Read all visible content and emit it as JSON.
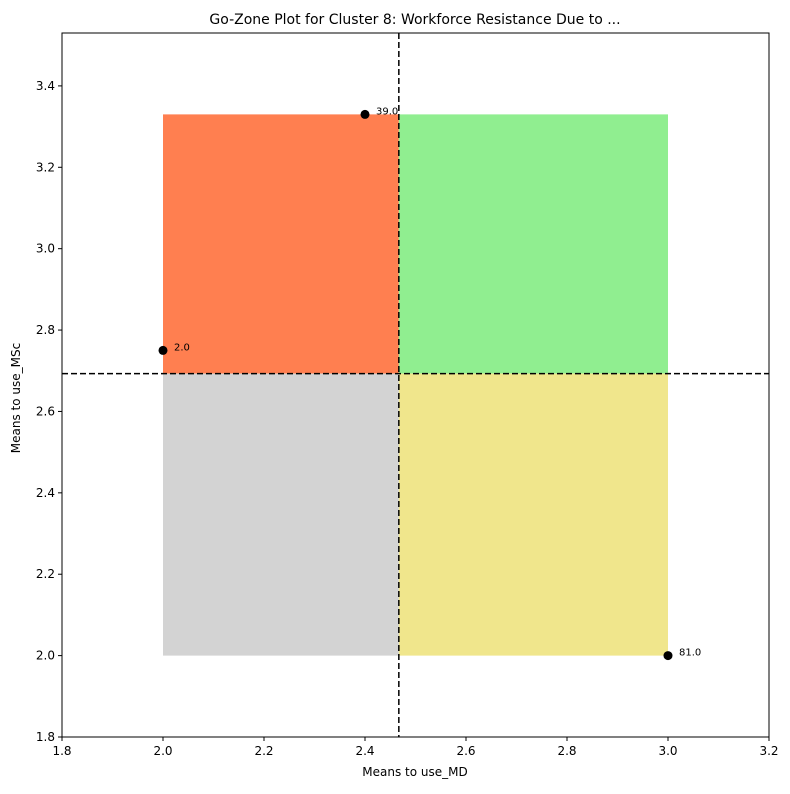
{
  "chart_data": {
    "type": "scatter",
    "title": "Go-Zone Plot for Cluster 8: Workforce Resistance Due to ...",
    "xlabel": "Means to use_MD",
    "ylabel": "Means to use_MSc",
    "xlim": [
      1.8,
      3.2
    ],
    "ylim": [
      1.8,
      3.53
    ],
    "x_ticks": [
      1.8,
      2.0,
      2.2,
      2.4,
      2.6,
      2.8,
      3.0,
      3.2
    ],
    "x_tick_labels": [
      "1.8",
      "2.0",
      "2.2",
      "2.4",
      "2.6",
      "2.8",
      "3.0",
      "3.2"
    ],
    "y_ticks": [
      1.8,
      2.0,
      2.2,
      2.4,
      2.6,
      2.8,
      3.0,
      3.2,
      3.4
    ],
    "y_tick_labels": [
      "1.8",
      "2.0",
      "2.2",
      "2.4",
      "2.6",
      "2.8",
      "3.0",
      "3.2",
      "3.4"
    ],
    "x_mean": 2.467,
    "y_mean": 2.693,
    "grid": false,
    "zones": [
      {
        "name": "upper-left",
        "x": [
          2.0,
          2.467
        ],
        "y": [
          2.693,
          3.33
        ],
        "color": "#ff7f50"
      },
      {
        "name": "upper-right",
        "x": [
          2.467,
          3.0
        ],
        "y": [
          2.693,
          3.33
        ],
        "color": "#90ee90"
      },
      {
        "name": "lower-left",
        "x": [
          2.0,
          2.467
        ],
        "y": [
          2.0,
          2.693
        ],
        "color": "#d3d3d3"
      },
      {
        "name": "lower-right",
        "x": [
          2.467,
          3.0
        ],
        "y": [
          2.0,
          2.693
        ],
        "color": "#f0e68c"
      }
    ],
    "points": [
      {
        "x": 2.0,
        "y": 2.75,
        "label": "2.0"
      },
      {
        "x": 2.4,
        "y": 3.33,
        "label": "39.0"
      },
      {
        "x": 3.0,
        "y": 2.0,
        "label": "81.0"
      }
    ]
  }
}
